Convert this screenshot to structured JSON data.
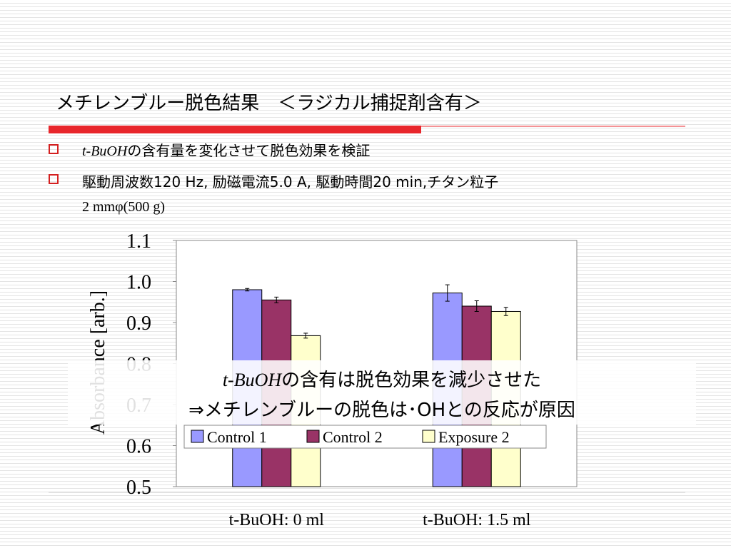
{
  "header": {
    "title": "メチレンブルー脱色結果　＜ラジカル捕捉剤含有＞"
  },
  "bullets": [
    [
      "t-BuOH",
      "の含有量を変化させて脱色効果を検証"
    ],
    [
      "駆動周波数120 Hz, 励磁電流5.0 A, 駆動時間20 min,チタン粒子",
      "2 mmφ(500 g)"
    ]
  ],
  "chart_data": {
    "type": "bar",
    "ylabel": "Absorbance [arb.]",
    "categories": [
      "t-BuOH: 0 ml",
      "t-BuOH: 1.5 ml"
    ],
    "series": [
      {
        "name": "Control 1",
        "color": "#9999ff",
        "values": [
          0.98,
          0.972
        ],
        "errors": [
          0.003,
          0.02
        ]
      },
      {
        "name": "Control 2",
        "color": "#993366",
        "values": [
          0.955,
          0.94
        ],
        "errors": [
          0.007,
          0.013
        ]
      },
      {
        "name": "Exposure 2",
        "color": "#ffffcc",
        "values": [
          0.868,
          0.927
        ],
        "errors": [
          0.006,
          0.01
        ]
      }
    ],
    "ylim": [
      0.5,
      1.1
    ],
    "yticks": [
      0.5,
      0.6,
      0.7,
      0.8,
      0.9,
      {
        "value": 1,
        "label": "1.0"
      },
      1.1
    ],
    "grid": false,
    "legend": "bottom",
    "annotation": [
      [
        "t-BuOH",
        "の含有は脱色効果を減少させた"
      ],
      [
        "⇒メチレンブルーの脱色は･OHとの反応が原因"
      ]
    ]
  }
}
